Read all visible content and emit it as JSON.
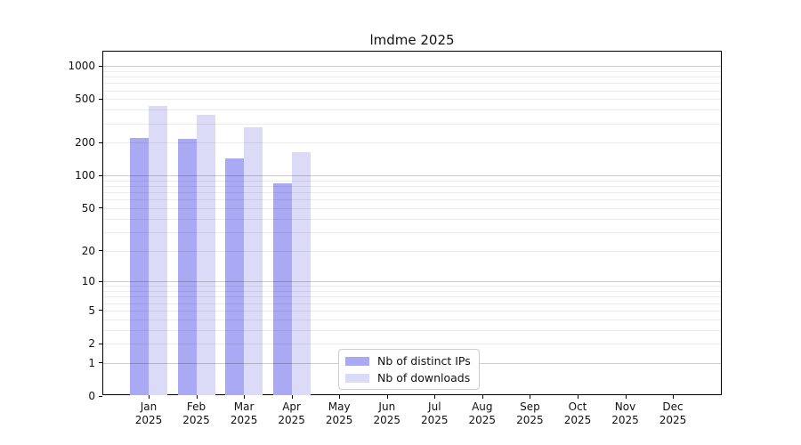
{
  "chart_data": {
    "type": "bar",
    "title": "lmdme 2025",
    "scale": "symlog-log1p",
    "categories": [
      {
        "month": "Jan",
        "year": "2025"
      },
      {
        "month": "Feb",
        "year": "2025"
      },
      {
        "month": "Mar",
        "year": "2025"
      },
      {
        "month": "Apr",
        "year": "2025"
      },
      {
        "month": "May",
        "year": "2025"
      },
      {
        "month": "Jun",
        "year": "2025"
      },
      {
        "month": "Jul",
        "year": "2025"
      },
      {
        "month": "Aug",
        "year": "2025"
      },
      {
        "month": "Sep",
        "year": "2025"
      },
      {
        "month": "Oct",
        "year": "2025"
      },
      {
        "month": "Nov",
        "year": "2025"
      },
      {
        "month": "Dec",
        "year": "2025"
      }
    ],
    "series": [
      {
        "name": "Nb of distinct IPs",
        "color": "#a9a9f4",
        "values": [
          219,
          215,
          143,
          84,
          null,
          null,
          null,
          null,
          null,
          null,
          null,
          null
        ]
      },
      {
        "name": "Nb of downloads",
        "color": "#dbdbf8",
        "values": [
          430,
          357,
          276,
          165,
          null,
          null,
          null,
          null,
          null,
          null,
          null,
          null
        ]
      }
    ],
    "y_ticks": [
      0,
      1,
      2,
      5,
      10,
      20,
      50,
      100,
      200,
      500,
      1000
    ],
    "ylim": [
      0,
      1350
    ],
    "xlabel": "",
    "ylabel": "",
    "grid": {
      "orientation": "horizontal",
      "major_values": [
        1,
        10,
        100,
        1000
      ],
      "minor_values": [
        2,
        3,
        4,
        5,
        6,
        7,
        8,
        9,
        20,
        30,
        40,
        50,
        60,
        70,
        80,
        90,
        200,
        300,
        400,
        500,
        600,
        700,
        800,
        900
      ]
    },
    "legend_position": "inside-bottom-center"
  },
  "legend": {
    "items": [
      {
        "label": "Nb of distinct IPs",
        "color": "#a9a9f4"
      },
      {
        "label": "Nb of downloads",
        "color": "#dbdbf8"
      }
    ]
  }
}
